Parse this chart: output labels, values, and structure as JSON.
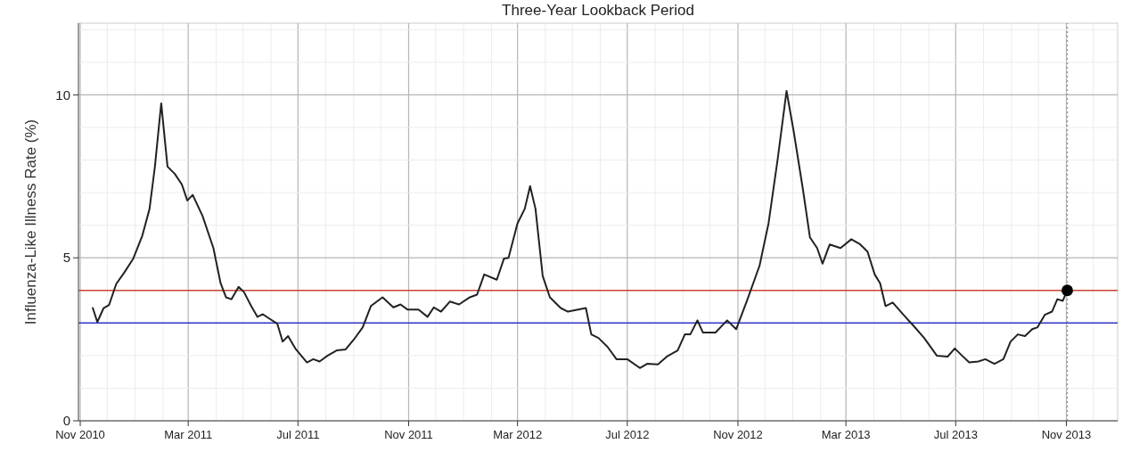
{
  "chart_data": {
    "type": "line",
    "title": "Three-Year Lookback Period",
    "ylabel": "Influenza-Like Illness Rate (%)",
    "xlim": [
      "2010-10-30",
      "2013-12-28"
    ],
    "ylim": [
      0,
      12.2
    ],
    "xticks": [
      {
        "value": "2010-11-01",
        "label": "Nov 2010"
      },
      {
        "value": "2010-12-01",
        "label": null
      },
      {
        "value": "2011-01-01",
        "label": null
      },
      {
        "value": "2011-02-01",
        "label": null
      },
      {
        "value": "2011-03-01",
        "label": "Mar 2011"
      },
      {
        "value": "2011-04-01",
        "label": null
      },
      {
        "value": "2011-05-01",
        "label": null
      },
      {
        "value": "2011-06-01",
        "label": null
      },
      {
        "value": "2011-07-01",
        "label": "Jul 2011"
      },
      {
        "value": "2011-08-01",
        "label": null
      },
      {
        "value": "2011-09-01",
        "label": null
      },
      {
        "value": "2011-10-01",
        "label": null
      },
      {
        "value": "2011-11-01",
        "label": "Nov 2011"
      },
      {
        "value": "2011-12-01",
        "label": null
      },
      {
        "value": "2012-01-01",
        "label": null
      },
      {
        "value": "2012-02-01",
        "label": null
      },
      {
        "value": "2012-03-01",
        "label": "Mar 2012"
      },
      {
        "value": "2012-04-01",
        "label": null
      },
      {
        "value": "2012-05-01",
        "label": null
      },
      {
        "value": "2012-06-01",
        "label": null
      },
      {
        "value": "2012-07-01",
        "label": "Jul 2012"
      },
      {
        "value": "2012-08-01",
        "label": null
      },
      {
        "value": "2012-09-01",
        "label": null
      },
      {
        "value": "2012-10-01",
        "label": null
      },
      {
        "value": "2012-11-01",
        "label": "Nov 2012"
      },
      {
        "value": "2012-12-01",
        "label": null
      },
      {
        "value": "2013-01-01",
        "label": null
      },
      {
        "value": "2013-02-01",
        "label": null
      },
      {
        "value": "2013-03-01",
        "label": "Mar 2013"
      },
      {
        "value": "2013-04-01",
        "label": null
      },
      {
        "value": "2013-05-01",
        "label": null
      },
      {
        "value": "2013-06-01",
        "label": null
      },
      {
        "value": "2013-07-01",
        "label": "Jul 2013"
      },
      {
        "value": "2013-08-01",
        "label": null
      },
      {
        "value": "2013-09-01",
        "label": null
      },
      {
        "value": "2013-10-01",
        "label": null
      },
      {
        "value": "2013-11-01",
        "label": "Nov 2013"
      },
      {
        "value": "2013-12-01",
        "label": null
      }
    ],
    "yticks": [
      0,
      {
        "value": 1,
        "label": null
      },
      {
        "value": 2,
        "label": null
      },
      {
        "value": 3,
        "label": null
      },
      {
        "value": 4,
        "label": null
      },
      5,
      {
        "value": 6,
        "label": null
      },
      {
        "value": 7,
        "label": null
      },
      {
        "value": 8,
        "label": null
      },
      {
        "value": 9,
        "label": null
      },
      10,
      {
        "value": 11,
        "label": null
      },
      {
        "value": 12,
        "label": null
      }
    ],
    "grid": true,
    "ref_lines": [
      {
        "axis": "y",
        "value": 4,
        "color": "#cc4433",
        "line_style": "solid"
      },
      {
        "axis": "y",
        "value": 3,
        "color": "#3333cc",
        "line_style": "solid"
      },
      {
        "axis": "x",
        "value": "2013-11-02",
        "color": "#999999",
        "line_style": "dotted"
      }
    ],
    "series": [
      {
        "color": "#222222",
        "marker": "none",
        "line_style": "solid",
        "x": [
          "2010-11-15",
          "2010-11-20",
          "2010-11-27",
          "2010-12-03",
          "2010-12-11",
          "2010-12-20",
          "2010-12-30",
          "2011-01-09",
          "2011-01-17",
          "2011-01-23",
          "2011-01-30",
          "2011-02-06",
          "2011-02-14",
          "2011-02-22",
          "2011-02-28",
          "2011-03-06",
          "2011-03-17",
          "2011-03-29",
          "2011-04-06",
          "2011-04-12",
          "2011-04-18",
          "2011-04-26",
          "2011-05-02",
          "2011-05-10",
          "2011-05-17",
          "2011-05-23",
          "2011-05-30",
          "2011-06-08",
          "2011-06-14",
          "2011-06-20",
          "2011-06-28",
          "2011-07-11",
          "2011-07-18",
          "2011-07-25",
          "2011-08-03",
          "2011-08-13",
          "2011-08-23",
          "2011-09-01",
          "2011-09-11",
          "2011-09-20",
          "2011-10-03",
          "2011-10-15",
          "2011-10-23",
          "2011-10-31",
          "2011-11-12",
          "2011-11-22",
          "2011-11-29",
          "2011-12-07",
          "2011-12-17",
          "2011-12-27",
          "2012-01-08",
          "2012-01-16",
          "2012-01-24",
          "2012-02-07",
          "2012-02-15",
          "2012-02-20",
          "2012-03-01",
          "2012-03-09",
          "2012-03-15",
          "2012-03-21",
          "2012-03-29",
          "2012-04-06",
          "2012-04-18",
          "2012-04-26",
          "2012-05-16",
          "2012-05-22",
          "2012-05-30",
          "2012-06-09",
          "2012-06-19",
          "2012-07-01",
          "2012-07-15",
          "2012-07-23",
          "2012-08-04",
          "2012-08-14",
          "2012-08-26",
          "2012-09-03",
          "2012-09-09",
          "2012-09-17",
          "2012-09-23",
          "2012-10-07",
          "2012-10-20",
          "2012-10-30",
          "2012-11-11",
          "2012-11-25",
          "2012-12-05",
          "2012-12-15",
          "2012-12-25",
          "2013-01-02",
          "2013-01-12",
          "2013-01-20",
          "2013-01-28",
          "2013-02-03",
          "2013-02-11",
          "2013-02-23",
          "2013-03-07",
          "2013-03-17",
          "2013-03-25",
          "2013-04-02",
          "2013-04-08",
          "2013-04-14",
          "2013-04-22",
          "2013-05-04",
          "2013-05-15",
          "2013-05-27",
          "2013-06-10",
          "2013-06-22",
          "2013-06-30",
          "2013-07-08",
          "2013-07-16",
          "2013-07-26",
          "2013-08-03",
          "2013-08-13",
          "2013-08-23",
          "2013-08-31",
          "2013-09-08",
          "2013-09-16",
          "2013-09-24",
          "2013-09-30",
          "2013-10-08",
          "2013-10-16",
          "2013-10-22",
          "2013-10-28",
          "2013-11-02"
        ],
        "values": [
          3.46,
          3.03,
          3.46,
          3.55,
          4.2,
          4.55,
          4.98,
          5.68,
          6.5,
          7.8,
          9.74,
          7.8,
          7.58,
          7.25,
          6.76,
          6.93,
          6.28,
          5.3,
          4.22,
          3.79,
          3.73,
          4.11,
          3.95,
          3.52,
          3.19,
          3.27,
          3.14,
          2.98,
          2.43,
          2.6,
          2.22,
          1.79,
          1.89,
          1.82,
          2.0,
          2.16,
          2.19,
          2.49,
          2.87,
          3.52,
          3.79,
          3.48,
          3.57,
          3.41,
          3.41,
          3.19,
          3.48,
          3.35,
          3.66,
          3.57,
          3.79,
          3.87,
          4.49,
          4.33,
          4.98,
          5.0,
          6.06,
          6.5,
          7.2,
          6.5,
          4.44,
          3.79,
          3.46,
          3.35,
          3.46,
          2.65,
          2.54,
          2.27,
          1.89,
          1.89,
          1.62,
          1.75,
          1.73,
          1.97,
          2.16,
          2.65,
          2.65,
          3.08,
          2.71,
          2.71,
          3.08,
          2.81,
          3.68,
          4.76,
          6.06,
          8.0,
          10.12,
          8.87,
          7.14,
          5.63,
          5.3,
          4.82,
          5.41,
          5.3,
          5.57,
          5.41,
          5.19,
          4.49,
          4.22,
          3.52,
          3.63,
          3.25,
          2.92,
          2.54,
          2.0,
          1.97,
          2.22,
          2.0,
          1.79,
          1.82,
          1.89,
          1.75,
          1.89,
          2.43,
          2.65,
          2.6,
          2.81,
          2.87,
          3.25,
          3.35,
          3.73,
          3.68,
          4.0
        ]
      },
      {
        "type": "scatter",
        "color": "#000000",
        "marker": "circle",
        "x": [
          "2013-11-02"
        ],
        "values": [
          4.0
        ]
      }
    ]
  }
}
